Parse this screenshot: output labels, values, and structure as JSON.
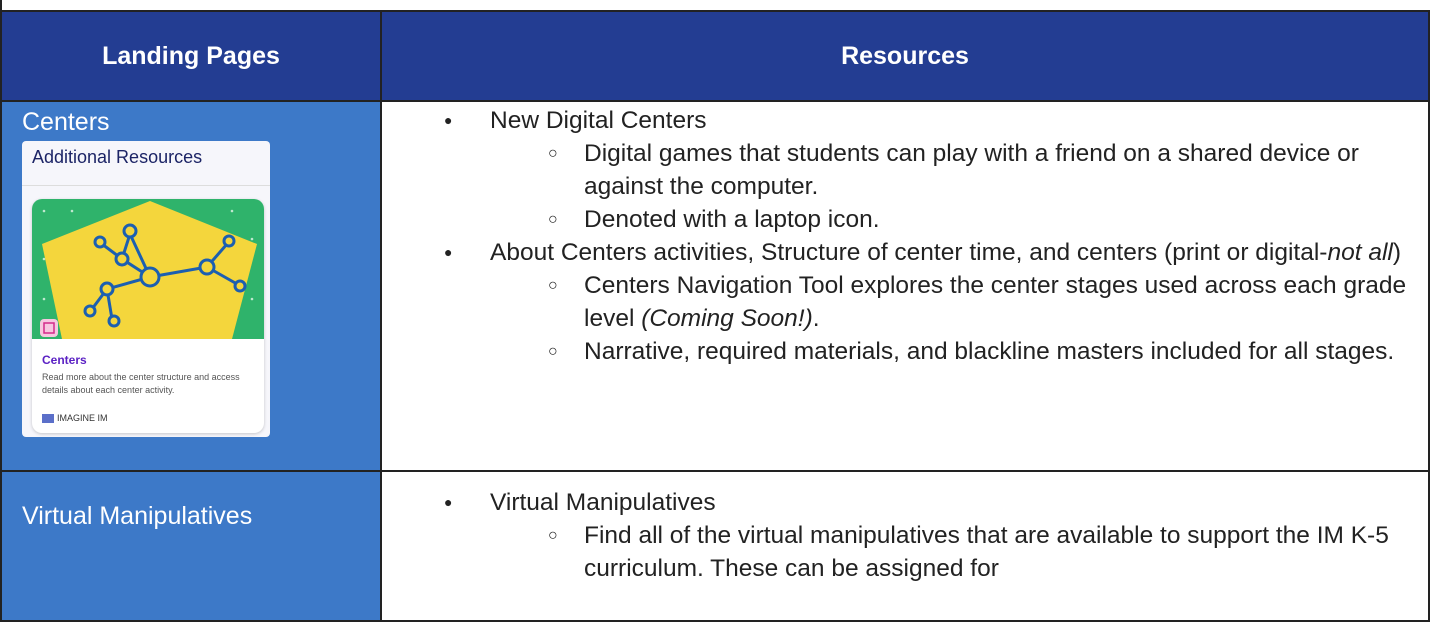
{
  "table": {
    "header": [
      "Landing Pages",
      "Resources"
    ],
    "rows": [
      {
        "landing": "Centers",
        "card": {
          "heading": "Additional Resources",
          "title": "Centers",
          "description": "Read more about the center structure and access details about each center activity.",
          "brand": "IMAGINE IM"
        },
        "resources": [
          {
            "parts": [
              {
                "t": "New Digital Centers"
              }
            ],
            "subitems": [
              [
                {
                  "t": "Digital games that students can play with a friend on a shared device or against the computer."
                }
              ],
              [
                {
                  "t": "Denoted with a laptop icon."
                }
              ]
            ]
          },
          {
            "parts": [
              {
                "t": "About Centers activities, Structure of center time, and centers (print or digital-"
              },
              {
                "t": "not all",
                "i": true
              },
              {
                "t": ")"
              }
            ],
            "subitems": [
              [
                {
                  "t": "Centers Navigation Tool explores the center stages used across each grade level "
                },
                {
                  "t": "(Coming Soon!)",
                  "i": true
                },
                {
                  "t": "."
                }
              ],
              [
                {
                  "t": "Narrative, required materials, and blackline masters included for all stages."
                }
              ]
            ]
          }
        ]
      },
      {
        "landing": "Virtual Manipulatives",
        "resources": [
          {
            "parts": [
              {
                "t": "Virtual Manipulatives"
              }
            ],
            "subitems": [
              [
                {
                  "t": "Find all of the virtual manipulatives that are available to support the IM K-5 curriculum. These can be assigned for"
                }
              ]
            ]
          }
        ]
      }
    ]
  }
}
